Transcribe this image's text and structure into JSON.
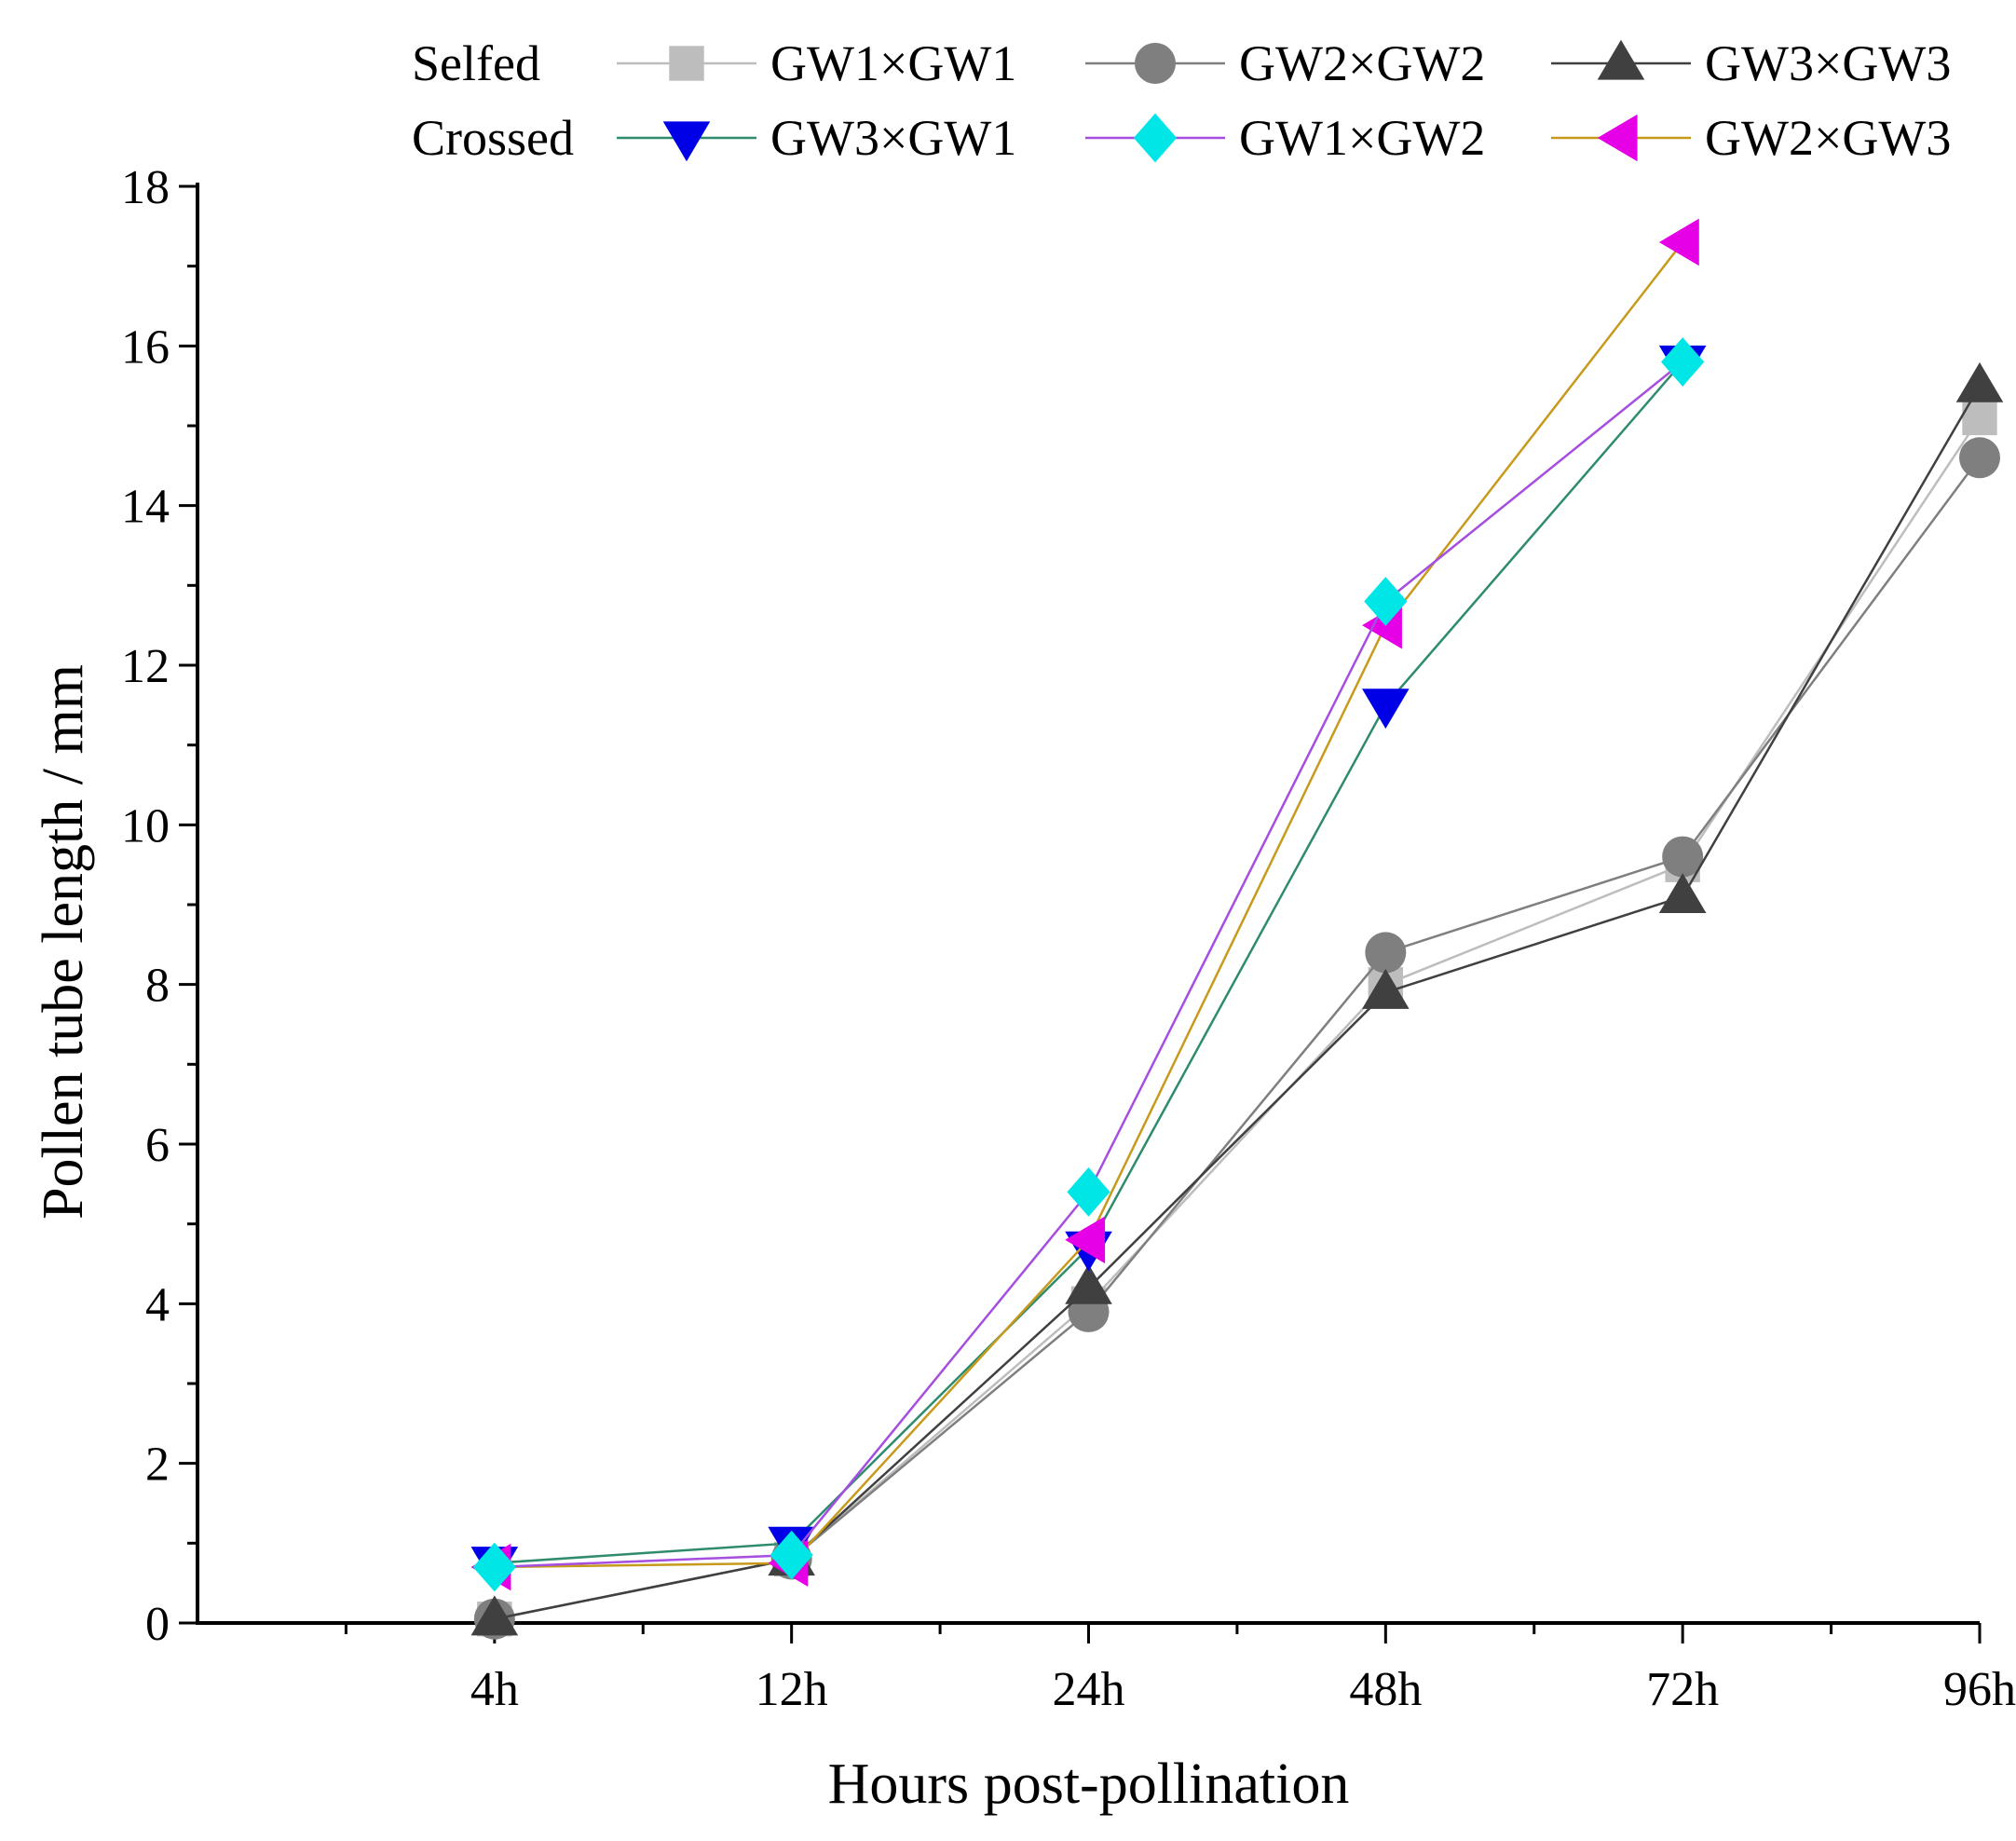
{
  "chart_data": {
    "type": "line",
    "xlabel": "Hours post-pollination",
    "ylabel": "Pollen tube length / mm",
    "categories": [
      "4h",
      "12h",
      "24h",
      "48h",
      "72h",
      "96h"
    ],
    "ylim": [
      0,
      18
    ],
    "yticks": [
      0,
      2,
      4,
      6,
      8,
      10,
      12,
      14,
      16,
      18
    ],
    "grid": false,
    "legend_position": "top",
    "legend_groups": [
      {
        "label": "Selfed",
        "series": [
          0,
          1,
          2
        ]
      },
      {
        "label": "Crossed",
        "series": [
          3,
          4,
          5
        ]
      }
    ],
    "series": [
      {
        "name": "GW1×GW1",
        "color": "#bdbdbd",
        "marker": "square",
        "values": [
          0.05,
          0.8,
          4.0,
          8.0,
          9.5,
          15.1
        ]
      },
      {
        "name": "GW2×GW2",
        "color": "#7f7f7f",
        "marker": "circle",
        "values": [
          0.05,
          0.8,
          3.9,
          8.4,
          9.6,
          14.6
        ]
      },
      {
        "name": "GW3×GW3",
        "color": "#404040",
        "marker": "triangle-up",
        "values": [
          0.05,
          0.8,
          4.2,
          7.9,
          9.1,
          15.5
        ]
      },
      {
        "name": "GW3×GW1",
        "color": "#0000e6",
        "line_color": "#2e8b6e",
        "marker": "triangle-down",
        "values": [
          0.75,
          1.0,
          4.7,
          11.5,
          15.8,
          null
        ]
      },
      {
        "name": "GW1×GW2",
        "color": "#00e5e5",
        "line_color": "#a64ee0",
        "marker": "diamond",
        "values": [
          0.7,
          0.85,
          5.4,
          12.8,
          15.8,
          null
        ]
      },
      {
        "name": "GW2×GW3",
        "color": "#e600e6",
        "line_color": "#c79a1c",
        "marker": "triangle-left",
        "values": [
          0.7,
          0.75,
          4.8,
          12.5,
          17.3,
          null
        ]
      }
    ]
  }
}
